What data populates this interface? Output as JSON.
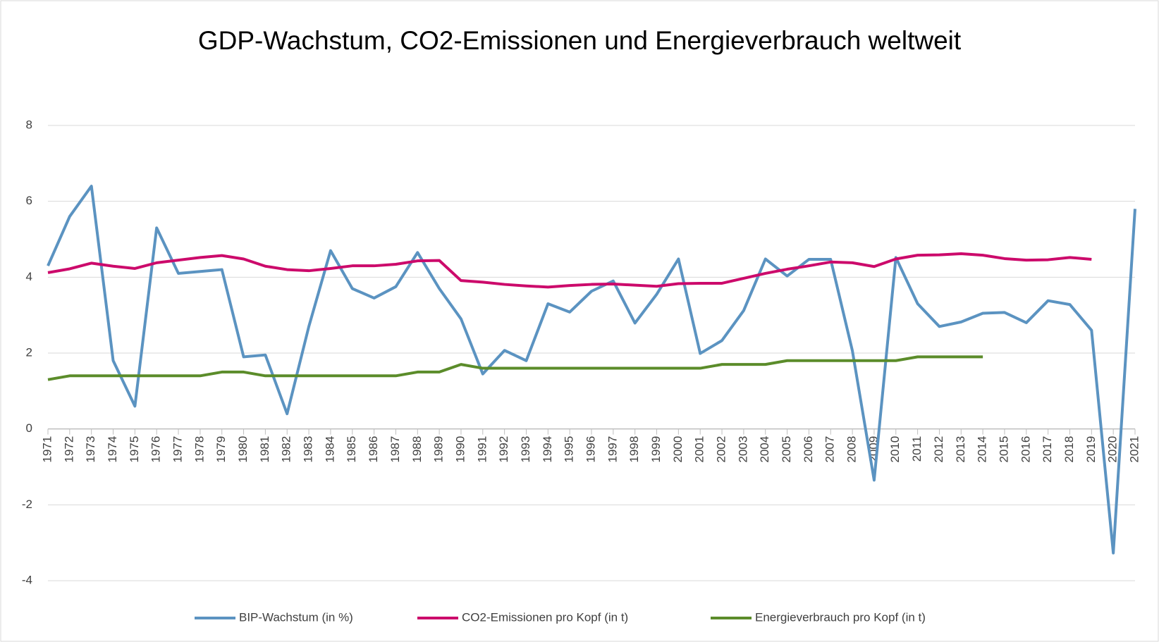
{
  "chart_data": {
    "type": "line",
    "title": "GDP-Wachstum, CO2-Emissionen und Energieverbrauch weltweit",
    "categories": [
      "1971",
      "1972",
      "1973",
      "1974",
      "1975",
      "1976",
      "1977",
      "1978",
      "1979",
      "1980",
      "1981",
      "1982",
      "1983",
      "1984",
      "1985",
      "1986",
      "1987",
      "1988",
      "1989",
      "1990",
      "1991",
      "1992",
      "1993",
      "1994",
      "1995",
      "1996",
      "1997",
      "1998",
      "1999",
      "2000",
      "2001",
      "2002",
      "2003",
      "2004",
      "2005",
      "2006",
      "2007",
      "2008",
      "2009",
      "2010",
      "2011",
      "2012",
      "2013",
      "2014",
      "2015",
      "2016",
      "2017",
      "2018",
      "2019",
      "2020",
      "2021"
    ],
    "series": [
      {
        "name": "BIP-Wachstum (in %)",
        "color": "#5b93c1",
        "values": [
          4.3,
          5.6,
          6.4,
          1.8,
          0.6,
          5.3,
          4.1,
          4.15,
          4.2,
          1.9,
          1.95,
          0.4,
          2.7,
          4.7,
          3.7,
          3.45,
          3.75,
          4.65,
          3.7,
          2.9,
          1.45,
          2.07,
          1.8,
          3.3,
          3.08,
          3.63,
          3.9,
          2.79,
          3.55,
          4.48,
          1.99,
          2.33,
          3.12,
          4.48,
          4.03,
          4.47,
          4.47,
          2.06,
          -1.35,
          4.52,
          3.3,
          2.7,
          2.82,
          3.05,
          3.07,
          2.8,
          3.38,
          3.28,
          2.6,
          -3.27,
          5.8
        ]
      },
      {
        "name": "CO2-Emissionen pro Kopf (in t)",
        "color": "#cc0a6b",
        "values": [
          4.12,
          4.22,
          4.37,
          4.29,
          4.23,
          4.38,
          4.45,
          4.52,
          4.57,
          4.48,
          4.29,
          4.2,
          4.17,
          4.23,
          4.3,
          4.3,
          4.34,
          4.43,
          4.44,
          3.91,
          3.87,
          3.81,
          3.77,
          3.74,
          3.78,
          3.81,
          3.82,
          3.79,
          3.76,
          3.83,
          3.84,
          3.84,
          3.97,
          4.1,
          4.21,
          4.3,
          4.4,
          4.38,
          4.28,
          4.48,
          4.58,
          4.59,
          4.62,
          4.58,
          4.49,
          4.45,
          4.46,
          4.52,
          4.47,
          null,
          null
        ]
      },
      {
        "name": "Energieverbrauch pro Kopf (in t)",
        "color": "#5b8c2a",
        "values": [
          1.3,
          1.4,
          1.4,
          1.4,
          1.4,
          1.4,
          1.4,
          1.4,
          1.5,
          1.5,
          1.4,
          1.4,
          1.4,
          1.4,
          1.4,
          1.4,
          1.4,
          1.5,
          1.5,
          1.7,
          1.6,
          1.6,
          1.6,
          1.6,
          1.6,
          1.6,
          1.6,
          1.6,
          1.6,
          1.6,
          1.6,
          1.7,
          1.7,
          1.7,
          1.8,
          1.8,
          1.8,
          1.8,
          1.8,
          1.8,
          1.9,
          1.9,
          1.9,
          1.9,
          null,
          null,
          null,
          null,
          null,
          null,
          null
        ]
      }
    ],
    "ylim": [
      -4,
      8
    ],
    "yticks": [
      -4,
      -2,
      0,
      2,
      4,
      6,
      8
    ],
    "grid": true,
    "legend": "bottom"
  }
}
